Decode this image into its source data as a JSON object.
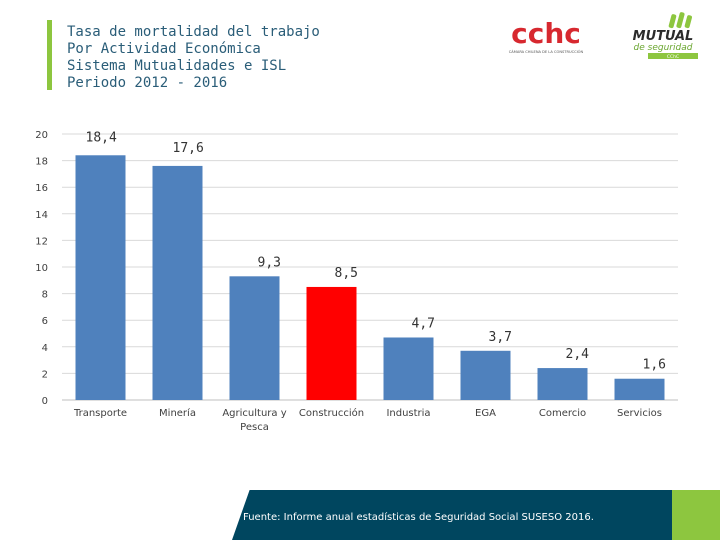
{
  "header": {
    "title_lines": [
      "Tasa de mortalidad del trabajo",
      "Por Actividad Económica",
      "Sistema Mutualidades e ISL",
      "Periodo 2012 - 2016"
    ]
  },
  "logos": {
    "cchc": {
      "text": "cchc",
      "subtitle": "CÁMARA CHILENA DE LA CONSTRUCCIÓN"
    },
    "mutual": {
      "line1": "MUTUAL",
      "line2": "de seguridad",
      "tag": "CChC"
    }
  },
  "chart_data": {
    "type": "bar",
    "title": "Tasa de mortalidad del trabajo",
    "categories": [
      "Transporte",
      "Minería",
      "Agricultura y Pesca",
      "Construcción",
      "Industria",
      "EGA",
      "Comercio",
      "Servicios"
    ],
    "category_lines": [
      [
        "Transporte"
      ],
      [
        "Minería"
      ],
      [
        "Agricultura y",
        "Pesca"
      ],
      [
        "Construcción"
      ],
      [
        "Industria"
      ],
      [
        "EGA"
      ],
      [
        "Comercio"
      ],
      [
        "Servicios"
      ]
    ],
    "values": [
      18.4,
      17.6,
      9.3,
      8.5,
      4.7,
      3.7,
      2.4,
      1.6
    ],
    "value_labels": [
      "18,4",
      "17,6",
      "9,3",
      "8,5",
      "4,7",
      "3,7",
      "2,4",
      "1,6"
    ],
    "highlight_index": 3,
    "ylim": [
      0,
      20
    ],
    "yticks": [
      0,
      2,
      4,
      6,
      8,
      10,
      12,
      14,
      16,
      18,
      20
    ],
    "grid": true,
    "xlabel": "",
    "ylabel": "",
    "colors": {
      "bar": "#4f81bd",
      "highlight": "#ff0000",
      "grid": "#d9d9d9"
    }
  },
  "footer": {
    "source": "Fuente: Informe anual estadísticas de Seguridad Social SUSESO 2016."
  },
  "colors": {
    "accent_green": "#8dc63f",
    "footer_blue": "#00465f",
    "title_blue": "#2a5d78",
    "cchc_red": "#d7282f"
  }
}
